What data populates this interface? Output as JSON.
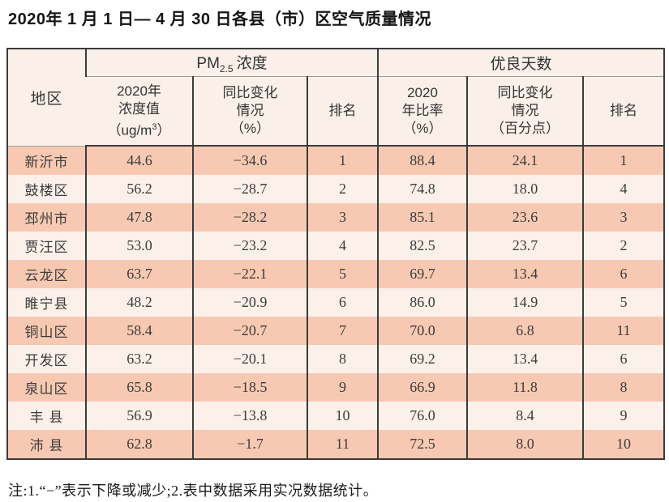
{
  "title": "2020年 1 月 1 日— 4 月 30 日各县（市）区空气质量情况",
  "table": {
    "corner_header": "地区",
    "pm_group": {
      "label_prefix": "PM",
      "label_subscript": "2.5",
      "label_suffix": "浓度",
      "col_value": {
        "line1": "2020年",
        "line2": "浓度值",
        "line3_pre": "（ug/m",
        "line3_sup": "3",
        "line3_post": "）"
      },
      "col_change": {
        "line1": "同比变化",
        "line2": "情况",
        "line3": "（%）"
      },
      "col_rank": "排名"
    },
    "good_days_group": {
      "label": "优良天数",
      "col_ratio": {
        "line1": "2020",
        "line2": "年比率",
        "line3": "（%）"
      },
      "col_change": {
        "line1": "同比变化",
        "line2": "情况",
        "line3": "（百分点）"
      },
      "col_rank": "排名"
    },
    "rows": [
      {
        "region": "新沂市",
        "pm_value": "44.6",
        "pm_change": "−34.6",
        "pm_rank": "1",
        "ratio": "88.4",
        "ratio_change": "24.1",
        "ratio_rank": "1"
      },
      {
        "region": "鼓楼区",
        "pm_value": "56.2",
        "pm_change": "−28.7",
        "pm_rank": "2",
        "ratio": "74.8",
        "ratio_change": "18.0",
        "ratio_rank": "4"
      },
      {
        "region": "邳州市",
        "pm_value": "47.8",
        "pm_change": "−28.2",
        "pm_rank": "3",
        "ratio": "85.1",
        "ratio_change": "23.6",
        "ratio_rank": "3"
      },
      {
        "region": "贾汪区",
        "pm_value": "53.0",
        "pm_change": "−23.2",
        "pm_rank": "4",
        "ratio": "82.5",
        "ratio_change": "23.7",
        "ratio_rank": "2"
      },
      {
        "region": "云龙区",
        "pm_value": "63.7",
        "pm_change": "−22.1",
        "pm_rank": "5",
        "ratio": "69.7",
        "ratio_change": "13.4",
        "ratio_rank": "6"
      },
      {
        "region": "睢宁县",
        "pm_value": "48.2",
        "pm_change": "−20.9",
        "pm_rank": "6",
        "ratio": "86.0",
        "ratio_change": "14.9",
        "ratio_rank": "5"
      },
      {
        "region": "铜山区",
        "pm_value": "58.4",
        "pm_change": "−20.7",
        "pm_rank": "7",
        "ratio": "70.0",
        "ratio_change": "6.8",
        "ratio_rank": "11"
      },
      {
        "region": "开发区",
        "pm_value": "63.2",
        "pm_change": "−20.1",
        "pm_rank": "8",
        "ratio": "69.2",
        "ratio_change": "13.4",
        "ratio_rank": "6"
      },
      {
        "region": "泉山区",
        "pm_value": "65.8",
        "pm_change": "−18.5",
        "pm_rank": "9",
        "ratio": "66.9",
        "ratio_change": "11.8",
        "ratio_rank": "8"
      },
      {
        "region": "丰 县",
        "pm_value": "56.9",
        "pm_change": "−13.8",
        "pm_rank": "10",
        "ratio": "76.0",
        "ratio_change": "8.4",
        "ratio_rank": "9"
      },
      {
        "region": "沛 县",
        "pm_value": "62.8",
        "pm_change": "−1.7",
        "pm_rank": "11",
        "ratio": "72.5",
        "ratio_change": "8.0",
        "ratio_rank": "10"
      }
    ]
  },
  "note": "注:1.“−”表示下降或减少;2.表中数据采用实况数据统计。",
  "colors": {
    "row_dark": "#f8c9b2",
    "row_light": "#fbf1ea",
    "header_bg": "#faf0e9",
    "border": "#3b3b3b",
    "group_line": "#9a9a9a"
  }
}
